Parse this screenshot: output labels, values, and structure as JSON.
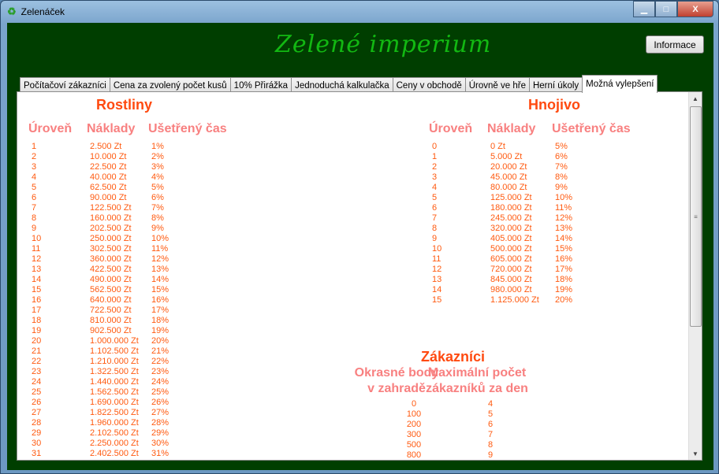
{
  "window": {
    "title": "Zelenáček",
    "minimize": "▁",
    "maximize": "□",
    "close": "X"
  },
  "header": {
    "logo": "Zelené imperium",
    "info_button": "Informace"
  },
  "tabs": [
    "Počítačoví zákazníci",
    "Cena za zvolený počet kusů",
    "10% Přirážka",
    "Jednoduchá kalkulačka",
    "Ceny v obchodě",
    "Úrovně ve hře",
    "Herní úkoly",
    "Možná vylepšení"
  ],
  "active_tab": 7,
  "rostliny": {
    "title": "Rostliny",
    "headers": [
      "Úroveň",
      "Náklady",
      "Ušetřený čas"
    ],
    "rows": [
      [
        "1",
        "2.500 Zt",
        "1%"
      ],
      [
        "2",
        "10.000 Zt",
        "2%"
      ],
      [
        "3",
        "22.500 Zt",
        "3%"
      ],
      [
        "4",
        "40.000 Zt",
        "4%"
      ],
      [
        "5",
        "62.500 Zt",
        "5%"
      ],
      [
        "6",
        "90.000 Zt",
        "6%"
      ],
      [
        "7",
        "122.500 Zt",
        "7%"
      ],
      [
        "8",
        "160.000 Zt",
        "8%"
      ],
      [
        "9",
        "202.500 Zt",
        "9%"
      ],
      [
        "10",
        "250.000 Zt",
        "10%"
      ],
      [
        "11",
        "302.500 Zt",
        "11%"
      ],
      [
        "12",
        "360.000 Zt",
        "12%"
      ],
      [
        "13",
        "422.500 Zt",
        "13%"
      ],
      [
        "14",
        "490.000 Zt",
        "14%"
      ],
      [
        "15",
        "562.500 Zt",
        "15%"
      ],
      [
        "16",
        "640.000 Zt",
        "16%"
      ],
      [
        "17",
        "722.500 Zt",
        "17%"
      ],
      [
        "18",
        "810.000 Zt",
        "18%"
      ],
      [
        "19",
        "902.500 Zt",
        "19%"
      ],
      [
        "20",
        "1.000.000 Zt",
        "20%"
      ],
      [
        "21",
        "1.102.500 Zt",
        "21%"
      ],
      [
        "22",
        "1.210.000 Zt",
        "22%"
      ],
      [
        "23",
        "1.322.500 Zt",
        "23%"
      ],
      [
        "24",
        "1.440.000 Zt",
        "24%"
      ],
      [
        "25",
        "1.562.500 Zt",
        "25%"
      ],
      [
        "26",
        "1.690.000 Zt",
        "26%"
      ],
      [
        "27",
        "1.822.500 Zt",
        "27%"
      ],
      [
        "28",
        "1.960.000 Zt",
        "28%"
      ],
      [
        "29",
        "2.102.500 Zt",
        "29%"
      ],
      [
        "30",
        "2.250.000 Zt",
        "30%"
      ],
      [
        "31",
        "2.402.500 Zt",
        "31%"
      ]
    ]
  },
  "hnojivo": {
    "title": "Hnojivo",
    "headers": [
      "Úroveň",
      "Náklady",
      "Ušetřený čas"
    ],
    "rows": [
      [
        "0",
        "0 Zt",
        "5%"
      ],
      [
        "1",
        "5.000 Zt",
        "6%"
      ],
      [
        "2",
        "20.000 Zt",
        "7%"
      ],
      [
        "3",
        "45.000 Zt",
        "8%"
      ],
      [
        "4",
        "80.000 Zt",
        "9%"
      ],
      [
        "5",
        "125.000 Zt",
        "10%"
      ],
      [
        "6",
        "180.000 Zt",
        "11%"
      ],
      [
        "7",
        "245.000 Zt",
        "12%"
      ],
      [
        "8",
        "320.000 Zt",
        "13%"
      ],
      [
        "9",
        "405.000 Zt",
        "14%"
      ],
      [
        "10",
        "500.000 Zt",
        "15%"
      ],
      [
        "11",
        "605.000 Zt",
        "16%"
      ],
      [
        "12",
        "720.000 Zt",
        "17%"
      ],
      [
        "13",
        "845.000 Zt",
        "18%"
      ],
      [
        "14",
        "980.000 Zt",
        "19%"
      ],
      [
        "15",
        "1.125.000 Zt",
        "20%"
      ]
    ]
  },
  "zakaznici": {
    "title": "Zákazníci",
    "headers": [
      [
        "Okrasné body",
        "v zahradě"
      ],
      [
        "Maximální počet",
        "zákazníků za den"
      ]
    ],
    "rows": [
      [
        "0",
        "4"
      ],
      [
        "100",
        "5"
      ],
      [
        "200",
        "6"
      ],
      [
        "300",
        "7"
      ],
      [
        "500",
        "8"
      ],
      [
        "800",
        "9"
      ]
    ]
  }
}
